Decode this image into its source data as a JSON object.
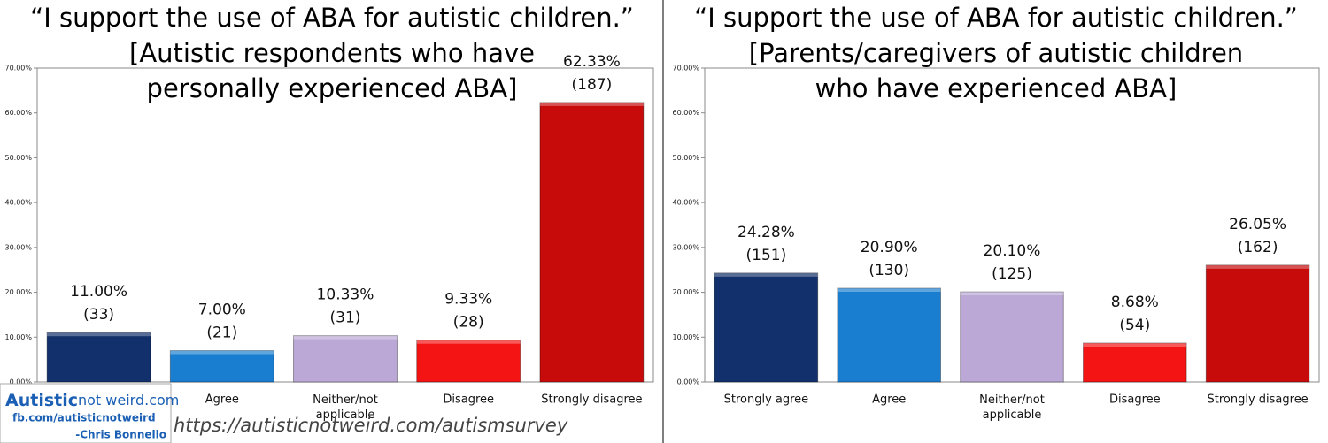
{
  "chart_data": [
    {
      "type": "bar",
      "title_lines": [
        "“I support the use of ABA for autistic children.”",
        "[Autistic respondents who have",
        "personally experienced ABA]"
      ],
      "categories": [
        null,
        "Agree",
        "Neither/not applicable",
        "Disagree",
        "Strongly disagree"
      ],
      "values": [
        11.0,
        7.0,
        10.33,
        9.33,
        62.33
      ],
      "value_labels": [
        "11.00%",
        "7.00%",
        "10.33%",
        "9.33%",
        "62.33%"
      ],
      "count_labels": [
        "(33)",
        "(21)",
        "(31)",
        "(28)",
        "(187)"
      ],
      "colors": [
        "#12306b",
        "#1a7ed0",
        "#bba8d6",
        "#f51414",
        "#c70a0a"
      ],
      "ylim": [
        0,
        70
      ],
      "yticks": [
        {
          "value": 0,
          "label": "0.00%"
        },
        {
          "value": 10,
          "label": "10.00%"
        },
        {
          "value": 20,
          "label": "20.00%"
        },
        {
          "value": 30,
          "label": "30.00%"
        },
        {
          "value": 40,
          "label": "40.00%"
        },
        {
          "value": 50,
          "label": "50.00%"
        },
        {
          "value": 60,
          "label": "60.00%"
        },
        {
          "value": 70,
          "label": "70.00%"
        }
      ],
      "grid": false
    },
    {
      "type": "bar",
      "title_lines": [
        "“I support the use of ABA for autistic children.”",
        "[Parents/caregivers of autistic children",
        "who have experienced ABA]"
      ],
      "categories": [
        "Strongly agree",
        "Agree",
        "Neither/not applicable",
        "Disagree",
        "Strongly disagree"
      ],
      "values": [
        24.28,
        20.9,
        20.1,
        8.68,
        26.05
      ],
      "value_labels": [
        "24.28%",
        "20.90%",
        "20.10%",
        "8.68%",
        "26.05%"
      ],
      "count_labels": [
        "(151)",
        "(130)",
        "(125)",
        "(54)",
        "(162)"
      ],
      "colors": [
        "#12306b",
        "#1a7ed0",
        "#bba8d6",
        "#f51414",
        "#c70a0a"
      ],
      "ylim": [
        0,
        70
      ],
      "yticks": [
        {
          "value": 0,
          "label": "0.00%"
        },
        {
          "value": 10,
          "label": "10.00%"
        },
        {
          "value": 20,
          "label": "20.00%"
        },
        {
          "value": 30,
          "label": "30.00%"
        },
        {
          "value": 40,
          "label": "40.00%"
        },
        {
          "value": 50,
          "label": "50.00%"
        },
        {
          "value": 60,
          "label": "60.00%"
        },
        {
          "value": 70,
          "label": "70.00%"
        }
      ],
      "grid": false
    }
  ],
  "watermark": {
    "brand_bold": "Autistic",
    "brand_rest": "not weird.com",
    "facebook": "fb.com/autisticnotweird",
    "author": "-Chris Bonnello",
    "url": "https://autisticnotweird.com/autismsurvey"
  }
}
